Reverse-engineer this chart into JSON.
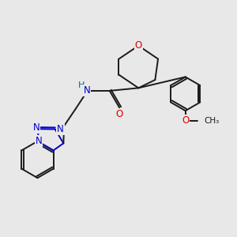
{
  "background_color": "#e8e8e8",
  "bond_color": "#1a1a1a",
  "nitrogen_color": "#0000cc",
  "oxygen_color": "#dd0000",
  "hydrogen_color": "#007070",
  "figsize": [
    3.0,
    3.0
  ],
  "dpi": 100,
  "xlim": [
    0,
    10
  ],
  "ylim": [
    0,
    10
  ]
}
